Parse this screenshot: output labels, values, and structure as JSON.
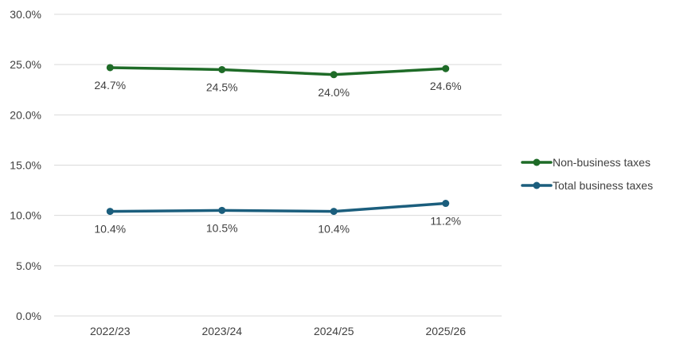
{
  "chart_data": {
    "type": "line",
    "title": "",
    "xlabel": "",
    "ylabel": "",
    "categories": [
      "2022/23",
      "2023/24",
      "2024/25",
      "2025/26"
    ],
    "ylim": [
      0,
      30
    ],
    "yticks": [
      0,
      5,
      10,
      15,
      20,
      25,
      30
    ],
    "ytick_labels": [
      "0.0%",
      "5.0%",
      "10.0%",
      "15.0%",
      "20.0%",
      "25.0%",
      "30.0%"
    ],
    "grid": true,
    "legend_position": "right",
    "series": [
      {
        "name": "Non-business taxes",
        "color": "#1e6b27",
        "values": [
          24.7,
          24.5,
          24.0,
          24.6
        ],
        "labels": [
          "24.7%",
          "24.5%",
          "24.0%",
          "24.6%"
        ]
      },
      {
        "name": "Total business taxes",
        "color": "#1b5e7d",
        "values": [
          10.4,
          10.5,
          10.4,
          11.2
        ],
        "labels": [
          "10.4%",
          "10.5%",
          "10.4%",
          "11.2%"
        ]
      }
    ]
  }
}
